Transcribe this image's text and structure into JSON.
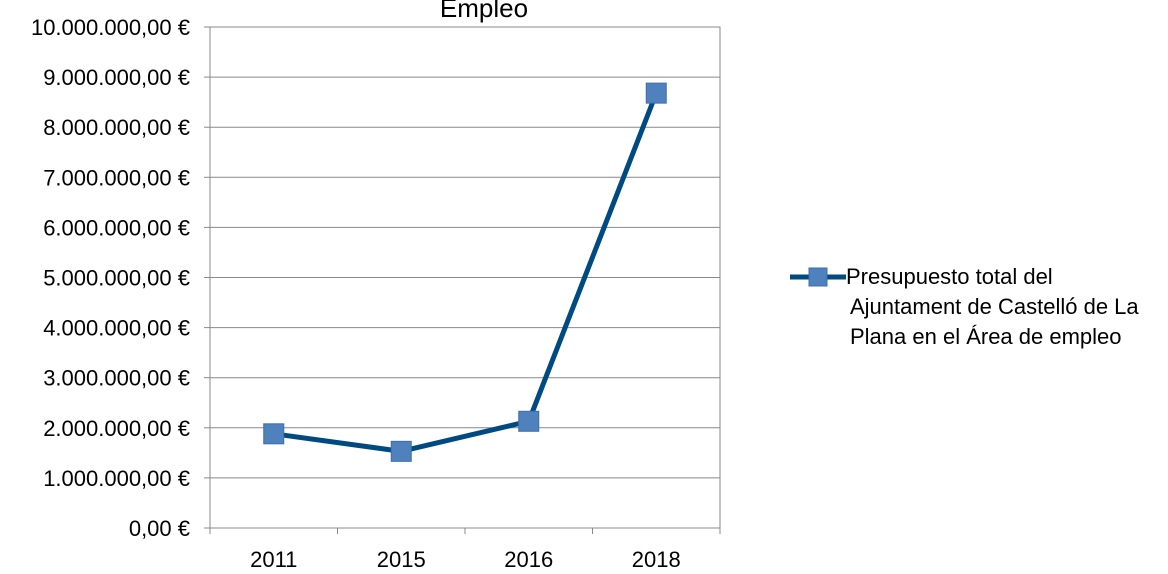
{
  "chart_data": {
    "type": "line",
    "title": "Empleo",
    "categories": [
      "2011",
      "2015",
      "2016",
      "2018"
    ],
    "series": [
      {
        "name": "Presupuesto total del Ajuntament de Castelló de La Plana en el Área de empleo",
        "values": [
          1880000,
          1530000,
          2130000,
          8680000
        ],
        "color": "#004a82",
        "marker_color": "#4f81bd",
        "marker": "square"
      }
    ],
    "y_ticks": [
      "0,00 €",
      "1.000.000,00 €",
      "2.000.000,00 €",
      "3.000.000,00 €",
      "4.000.000,00 €",
      "5.000.000,00 €",
      "6.000.000,00 €",
      "7.000.000,00 €",
      "8.000.000,00 €",
      "9.000.000,00 €",
      "10.000.000,00 €"
    ],
    "ylim": [
      0,
      10000000
    ],
    "grid": true,
    "legend_position": "right"
  },
  "legend": {
    "line1": "Presupuesto total del",
    "line2": "Ajuntament de Castelló de La",
    "line3": "Plana en el Área de empleo"
  }
}
